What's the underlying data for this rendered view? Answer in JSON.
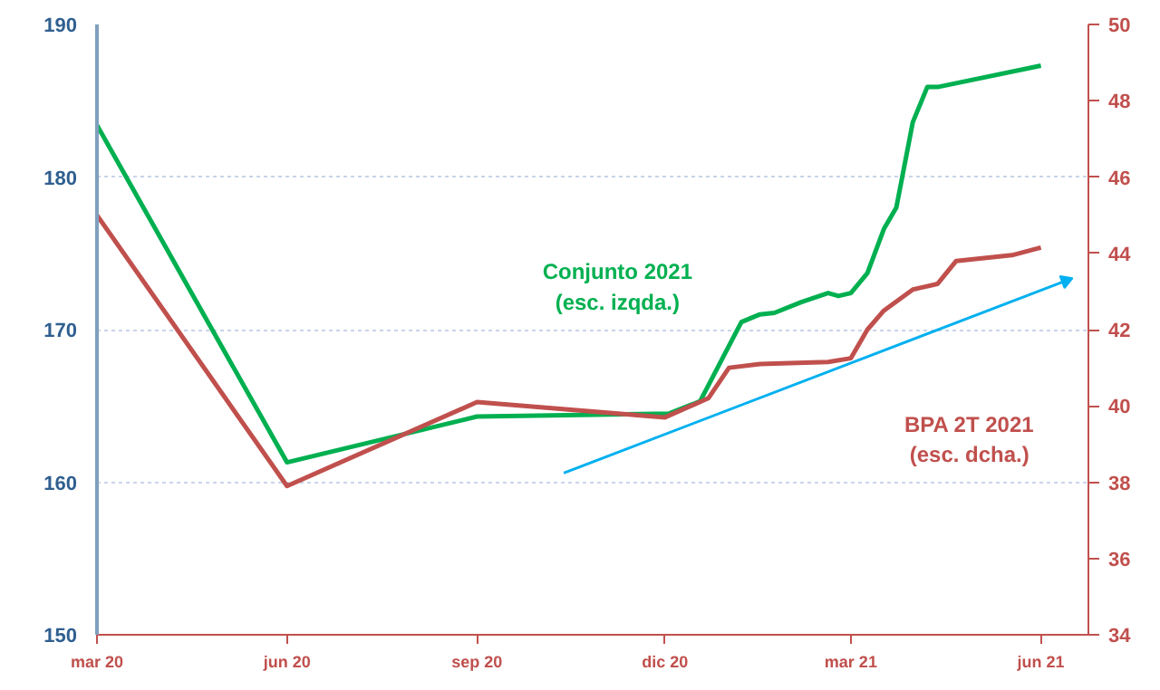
{
  "chart_data": {
    "type": "line",
    "xlim": [
      "2020-03-01",
      "2021-06-24"
    ],
    "xticks": [
      {
        "value": "2020-03-01",
        "label": "mar 20"
      },
      {
        "value": "2020-06-01",
        "label": "jun 20"
      },
      {
        "value": "2020-09-01",
        "label": "sep 20"
      },
      {
        "value": "2020-12-01",
        "label": "dic 20"
      },
      {
        "value": "2021-03-01",
        "label": "mar 21"
      },
      {
        "value": "2021-06-01",
        "label": "jun 21"
      }
    ],
    "ylim": [
      150,
      190
    ],
    "yticks": [
      150,
      160,
      170,
      180,
      190
    ],
    "y2lim": [
      34,
      50
    ],
    "y2ticks": [
      34,
      36,
      38,
      40,
      42,
      44,
      46,
      48,
      50
    ],
    "grid": "y",
    "marker": "none",
    "line_style": "solid",
    "series": [
      {
        "name": "Conjunto 2021\n(esc. izqda.)",
        "color": "#00b050",
        "x": [
          "2020-03-01",
          "2020-06-01",
          "2020-09-01",
          "2020-12-03",
          "2020-12-18",
          "2021-01-07",
          "2021-01-16",
          "2021-01-23",
          "2021-02-05",
          "2021-02-18",
          "2021-02-23",
          "2021-03-01",
          "2021-03-09",
          "2021-03-17",
          "2021-03-23",
          "2021-03-31",
          "2021-04-07",
          "2021-04-12",
          "2021-06-01"
        ],
        "values": [
          183.4,
          161.3,
          164.3,
          164.5,
          165.3,
          170.5,
          171.0,
          171.1,
          171.8,
          172.4,
          172.2,
          172.4,
          173.7,
          176.6,
          178.0,
          183.6,
          185.9,
          185.9,
          187.3
        ]
      },
      {
        "name": "BPA 2T 2021\n(esc. dcha.)",
        "color": "#c0504d",
        "axis": "y2",
        "x": [
          "2020-03-01",
          "2020-06-01",
          "2020-09-01",
          "2020-12-01",
          "2020-12-22",
          "2021-01-01",
          "2021-01-16",
          "2021-02-18",
          "2021-03-01",
          "2021-03-09",
          "2021-03-17",
          "2021-03-31",
          "2021-04-12",
          "2021-04-21",
          "2021-05-18",
          "2021-06-01"
        ],
        "values": [
          45.0,
          37.9,
          40.1,
          39.7,
          40.2,
          41.0,
          41.1,
          41.15,
          41.25,
          42.0,
          42.5,
          43.05,
          43.2,
          43.8,
          43.95,
          44.15
        ]
      },
      {
        "color": "#00b0f0",
        "marker": "triangle",
        "x": [
          "2020-10-13",
          "2021-06-13"
        ],
        "values": [
          160.6,
          173.2
        ]
      }
    ]
  }
}
